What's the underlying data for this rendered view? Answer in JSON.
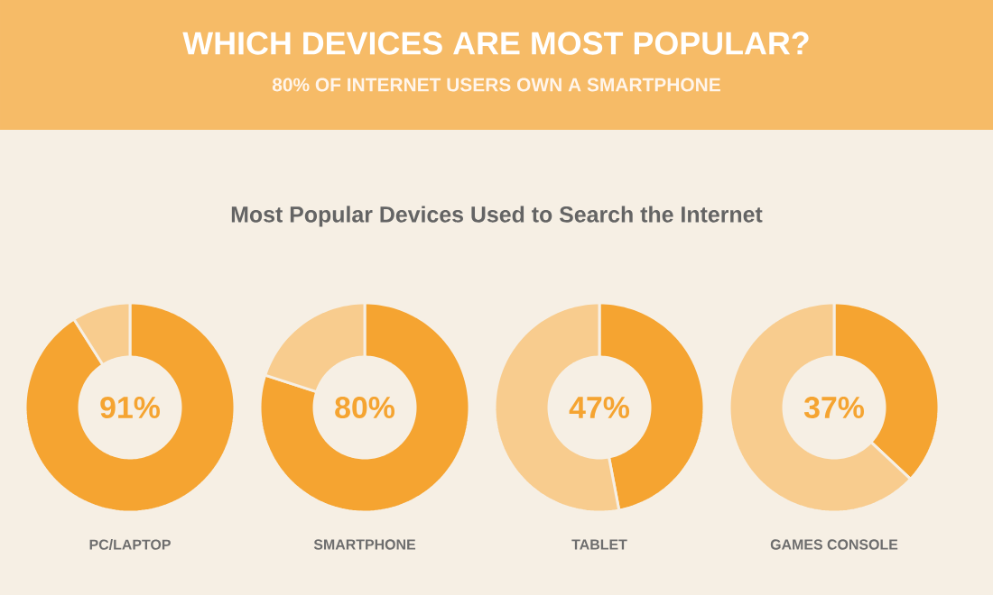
{
  "chart_data": [
    {
      "type": "other",
      "title": "WHICH DEVICES ARE MOST POPULAR?",
      "subtitle": "80% OF INTERNET USERS OWN A SMARTPHONE",
      "annotations": [
        "Most Popular Devices Used to Search the Internet"
      ]
    },
    {
      "type": "donut",
      "xlabel": "PC/LAPTOP",
      "categories": [
        null,
        null
      ],
      "values": [
        91,
        9
      ],
      "colors": [
        "#f5a431",
        "#f8cc8e"
      ],
      "annotations": [
        "91%"
      ]
    },
    {
      "type": "donut",
      "xlabel": "SMARTPHONE",
      "categories": [
        null,
        null
      ],
      "values": [
        80,
        20
      ],
      "colors": [
        "#f5a431",
        "#f8cc8e"
      ],
      "annotations": [
        "80%"
      ]
    },
    {
      "type": "donut",
      "xlabel": "TABLET",
      "categories": [
        null,
        null
      ],
      "values": [
        47,
        53
      ],
      "colors": [
        "#f5a431",
        "#f8cc8e"
      ],
      "annotations": [
        "47%"
      ]
    },
    {
      "type": "donut",
      "xlabel": "GAMES CONSOLE",
      "categories": [
        null,
        null
      ],
      "values": [
        37,
        63
      ],
      "colors": [
        "#f5a431",
        "#f8cc8e"
      ],
      "annotations": [
        "37%"
      ]
    }
  ]
}
